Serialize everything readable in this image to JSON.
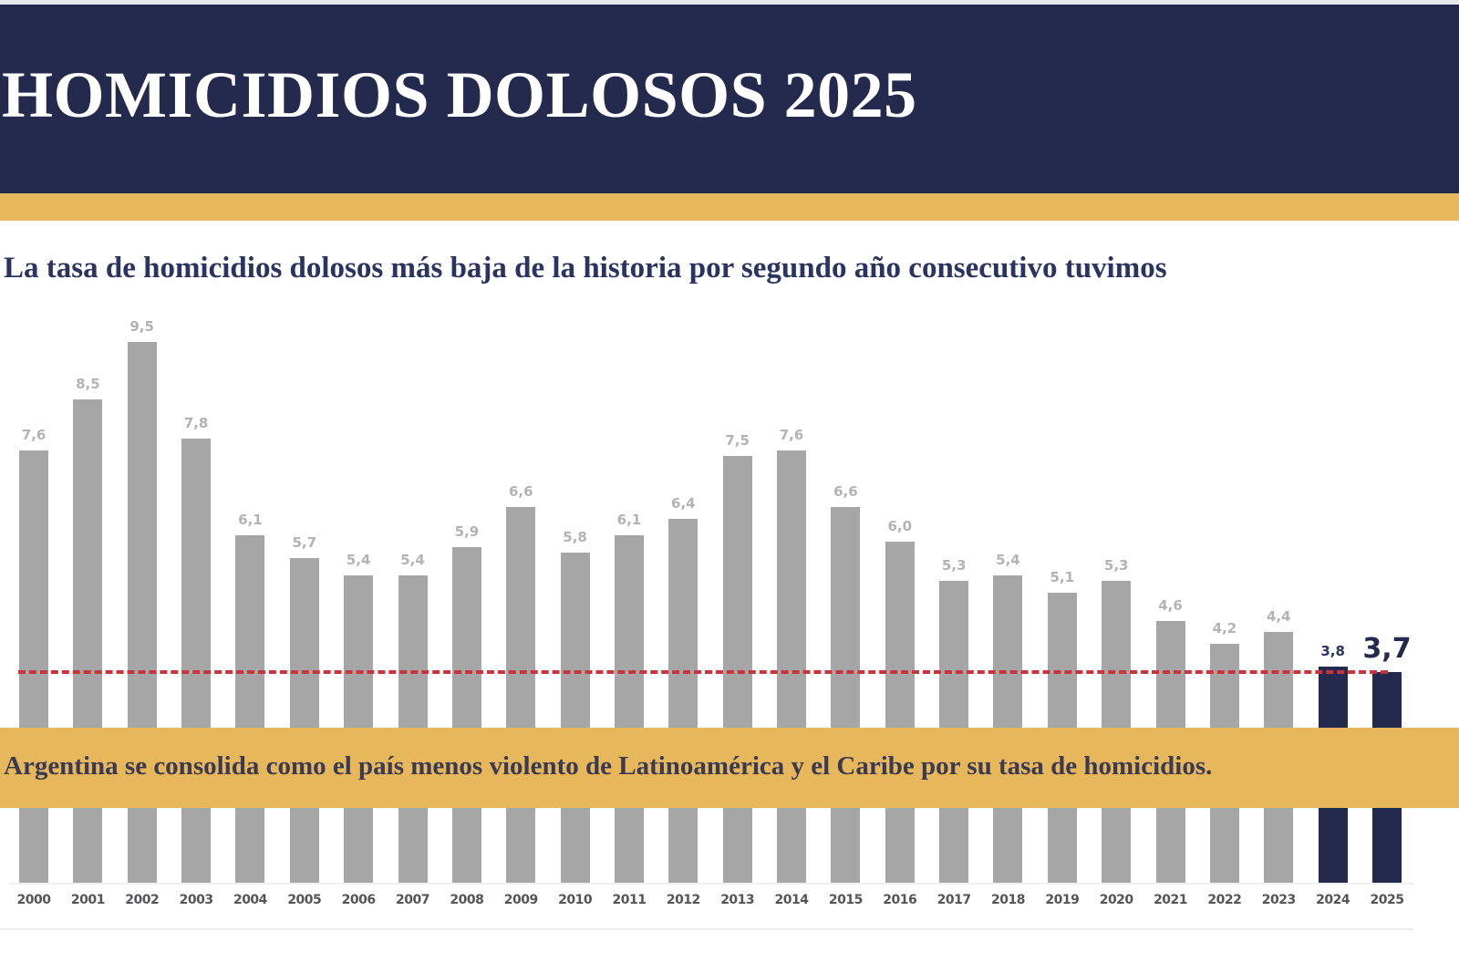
{
  "header": {
    "title": "HOMICIDIOS DOLOSOS 2025"
  },
  "subtitle": "La tasa de homicidios dolosos más baja de la historia por segundo año consecutivo tuvimos",
  "banner": {
    "text": "Argentina se consolida como el país menos violento de Latinoamérica y el Caribe por su tasa de homicidios."
  },
  "colors": {
    "header_bg": "#232a4d",
    "accent_gold": "#e7b85b",
    "bar_default": "#a7a6a7",
    "bar_highlight": "#232a4d",
    "reference_line": "#c9343a"
  },
  "chart_data": {
    "type": "bar",
    "title": "HOMICIDIOS DOLOSOS 2025",
    "subtitle": "La tasa de homicidios dolosos más baja de la historia por segundo año consecutivo tuvimos",
    "xlabel": "",
    "ylabel": "",
    "categories": [
      "2000",
      "2001",
      "2002",
      "2003",
      "2004",
      "2005",
      "2006",
      "2007",
      "2008",
      "2009",
      "2010",
      "2011",
      "2012",
      "2013",
      "2014",
      "2015",
      "2016",
      "2017",
      "2018",
      "2019",
      "2020",
      "2021",
      "2022",
      "2023",
      "2024",
      "2025"
    ],
    "values": [
      7.6,
      8.5,
      9.5,
      7.8,
      6.1,
      5.7,
      5.4,
      5.4,
      5.9,
      6.6,
      5.8,
      6.1,
      6.4,
      7.5,
      7.6,
      6.6,
      6.0,
      5.3,
      5.4,
      5.1,
      5.3,
      4.6,
      4.2,
      4.4,
      3.8,
      3.7
    ],
    "value_labels": [
      "7,6",
      "8,5",
      "9,5",
      "7,8",
      "6,1",
      "5,7",
      "5,4",
      "5,4",
      "5,9",
      "6,6",
      "5,8",
      "6,1",
      "6,4",
      "7,5",
      "7,6",
      "6,6",
      "6,0",
      "5,3",
      "5,4",
      "5,1",
      "5,3",
      "4,6",
      "4,2",
      "4,4",
      "3,8",
      "3,7"
    ],
    "highlighted": [
      "2024",
      "2025"
    ],
    "reference_line": {
      "value": 3.7,
      "style": "dashed",
      "color": "#c9343a"
    },
    "annotation": "Argentina se consolida como el país menos violento de Latinoamérica y el Caribe por su tasa de homicidios.",
    "ylim": [
      0,
      10
    ],
    "grid": false,
    "legend": "none"
  }
}
